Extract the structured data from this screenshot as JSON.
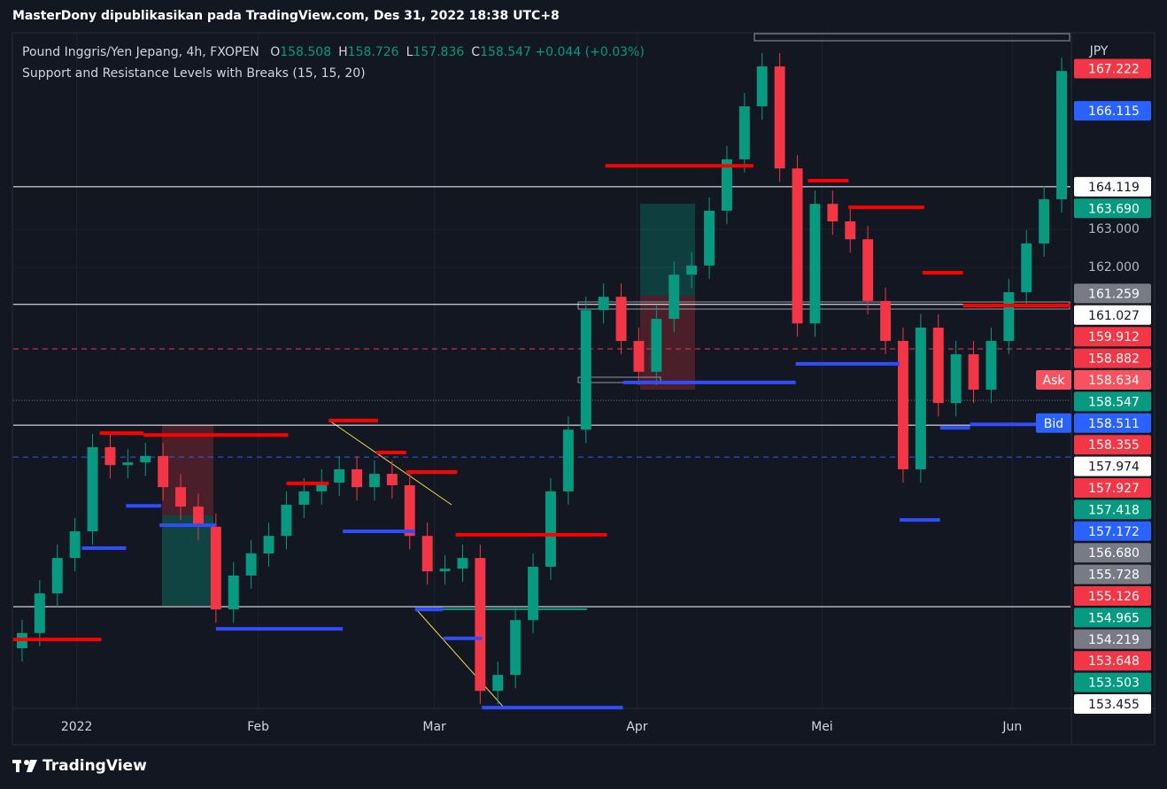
{
  "header": {
    "publisher": "MasterDony dipublikasikan pada TradingView.com, Des 31, 2022 18:38 UTC+8"
  },
  "footer": {
    "brand": "TradingView"
  },
  "chart_data": {
    "type": "candlestick",
    "title": "Pound Inggris/Yen Jepang, 4h, FXOPEN",
    "ohlc": [
      {
        "label": "O",
        "value": 158.508
      },
      {
        "label": "H",
        "value": 158.726
      },
      {
        "label": "L",
        "value": 157.836
      },
      {
        "label": "C",
        "value": 158.547
      }
    ],
    "change": "+0.044 (+0.03%)",
    "subtitle": "Support and Resistance Levels with Breaks (15, 15, 20)",
    "currency": "JPY",
    "up_color": "#089981",
    "down_color": "#f23645",
    "open": [
      152.0,
      152.4,
      153.44,
      154.37,
      155.07,
      157.28,
      156.81,
      156.88,
      157.05,
      156.23,
      155.72,
      155.19,
      153.02,
      153.91,
      154.49,
      154.95,
      155.77,
      156.12,
      156.35,
      156.7,
      156.23,
      156.58,
      156.28,
      154.95,
      154.02,
      154.09,
      154.37,
      150.88,
      151.3,
      152.74,
      154.14,
      156.12,
      157.74,
      160.88,
      161.23,
      160.07,
      159.26,
      160.65,
      161.81,
      162.05,
      163.49,
      164.84,
      166.23,
      167.28,
      164.6,
      160.53,
      163.67,
      163.21,
      162.74,
      161.12,
      160.07,
      156.7,
      160.42,
      158.44,
      159.72,
      158.79,
      160.07,
      161.35,
      162.63,
      163.79
    ],
    "high": [
      152.75,
      153.79,
      154.72,
      155.42,
      157.63,
      157.63,
      157.23,
      157.4,
      157.4,
      156.58,
      156.07,
      155.54,
      154.26,
      154.84,
      155.3,
      156.12,
      156.47,
      156.7,
      157.05,
      157.05,
      156.93,
      156.93,
      156.63,
      155.3,
      154.44,
      154.72,
      154.72,
      151.65,
      153.09,
      154.49,
      156.47,
      158.09,
      161.23,
      161.58,
      161.58,
      160.42,
      161.0,
      162.16,
      162.4,
      163.84,
      165.19,
      166.58,
      167.63,
      167.63,
      164.95,
      164.02,
      164.02,
      163.56,
      163.09,
      161.47,
      160.42,
      160.77,
      160.77,
      160.07,
      160.07,
      160.42,
      161.7,
      162.98,
      164.14,
      167.51
    ],
    "low": [
      151.65,
      152.05,
      153.09,
      154.02,
      154.72,
      156.46,
      156.46,
      156.53,
      155.88,
      155.37,
      154.84,
      152.67,
      152.67,
      153.56,
      154.14,
      154.6,
      155.42,
      155.77,
      156.0,
      155.88,
      155.88,
      155.93,
      154.6,
      153.67,
      153.67,
      153.74,
      150.53,
      150.53,
      150.95,
      152.39,
      153.79,
      155.77,
      157.39,
      160.53,
      159.72,
      158.91,
      158.91,
      160.3,
      161.46,
      161.7,
      163.14,
      164.49,
      165.88,
      164.25,
      160.18,
      160.18,
      162.86,
      162.39,
      160.77,
      159.72,
      156.35,
      156.35,
      158.09,
      158.09,
      158.44,
      158.44,
      159.72,
      161.0,
      162.28,
      163.44
    ],
    "close": [
      152.4,
      153.44,
      154.37,
      155.07,
      157.28,
      156.81,
      156.88,
      157.05,
      156.23,
      155.72,
      155.19,
      153.02,
      153.91,
      154.49,
      154.95,
      155.77,
      156.12,
      156.35,
      156.7,
      156.23,
      156.58,
      156.28,
      154.95,
      154.02,
      154.09,
      154.37,
      150.88,
      151.3,
      152.74,
      154.14,
      156.12,
      157.74,
      160.88,
      161.23,
      160.07,
      159.26,
      160.65,
      161.81,
      162.05,
      163.49,
      164.84,
      166.23,
      167.28,
      164.6,
      160.53,
      163.67,
      163.21,
      162.74,
      161.12,
      160.07,
      156.7,
      160.42,
      158.44,
      159.72,
      158.79,
      160.07,
      161.35,
      162.63,
      163.79,
      167.16
    ],
    "xlim": [
      0,
      60
    ],
    "xticks": [
      {
        "value": 3.6,
        "label": "2022"
      },
      {
        "value": 13.9,
        "label": "Feb"
      },
      {
        "value": 23.9,
        "label": "Mar"
      },
      {
        "value": 35.4,
        "label": "Apr"
      },
      {
        "value": 45.9,
        "label": "Mei"
      },
      {
        "value": 56.7,
        "label": "Jun"
      }
    ],
    "ylim": [
      150.42,
      168.14
    ],
    "yticks": [
      {
        "value": 163,
        "label": "163.000"
      },
      {
        "value": 162,
        "label": "162.000"
      }
    ],
    "levels": [
      {
        "value": 164.12,
        "color": "#ffffff",
        "style": "solid"
      },
      {
        "value": 161.03,
        "color": "#ffffff",
        "style": "solid"
      },
      {
        "value": 159.86,
        "color": "#f23645",
        "style": "dashed"
      },
      {
        "value": 158.51,
        "color": "#787b86",
        "style": "dotted"
      },
      {
        "value": 157.86,
        "color": "#ffffff",
        "style": "solid"
      },
      {
        "value": 157.02,
        "color": "#2962ff",
        "style": "dashed"
      },
      {
        "value": 153.09,
        "color": "#ffffff",
        "style": "solid"
      }
    ],
    "resistance": [
      {
        "from": 0,
        "to": 5.0,
        "value": 152.23
      },
      {
        "from": 4.9,
        "to": 7.4,
        "value": 157.65
      },
      {
        "from": 7.4,
        "to": 15.6,
        "value": 157.6
      },
      {
        "from": 15.5,
        "to": 17.9,
        "value": 156.33
      },
      {
        "from": 17.9,
        "to": 20.7,
        "value": 157.98
      },
      {
        "from": 20.6,
        "to": 22.3,
        "value": 157.14
      },
      {
        "from": 22.3,
        "to": 25.2,
        "value": 156.63
      },
      {
        "from": 25.1,
        "to": 33.7,
        "value": 154.98
      },
      {
        "from": 33.6,
        "to": 42.0,
        "value": 164.67
      },
      {
        "from": 45.1,
        "to": 47.4,
        "value": 164.28
      },
      {
        "from": 47.4,
        "to": 51.7,
        "value": 163.58
      },
      {
        "from": 51.6,
        "to": 53.9,
        "value": 161.86
      },
      {
        "from": 53.9,
        "to": 60,
        "value": 161.0
      }
    ],
    "support": [
      {
        "from": 3.9,
        "to": 6.4,
        "value": 154.63
      },
      {
        "from": 6.4,
        "to": 8.4,
        "value": 155.74
      },
      {
        "from": 8.3,
        "to": 11.5,
        "value": 155.23
      },
      {
        "from": 11.5,
        "to": 18.7,
        "value": 152.51
      },
      {
        "from": 18.7,
        "to": 22.8,
        "value": 155.07
      },
      {
        "from": 22.8,
        "to": 24.4,
        "value": 153.02
      },
      {
        "from": 24.4,
        "to": 26.6,
        "value": 152.26
      },
      {
        "from": 26.6,
        "to": 34.6,
        "value": 150.44
      },
      {
        "from": 34.6,
        "to": 44.4,
        "value": 158.98
      },
      {
        "from": 44.4,
        "to": 50.3,
        "value": 159.47
      },
      {
        "from": 50.3,
        "to": 52.6,
        "value": 155.37
      },
      {
        "from": 52.6,
        "to": 54.3,
        "value": 157.79
      },
      {
        "from": 54.3,
        "to": 58.1,
        "value": 157.88
      }
    ],
    "price_tags": [
      {
        "value": 167.222,
        "color": "#f23645",
        "text_color": "#ffffff"
      },
      {
        "value": 166.115,
        "color": "#2962ff",
        "text_color": "#ffffff"
      },
      {
        "value": 164.119,
        "color": "#ffffff",
        "text_color": "#131722"
      },
      {
        "value": 163.69,
        "label": "163.690",
        "color": "#089981",
        "text_color": "#ffffff"
      },
      {
        "value": 161.259,
        "color": "#787b86",
        "text_color": "#ffffff"
      },
      {
        "value": 161.027,
        "color": "#ffffff",
        "text_color": "#131722"
      },
      {
        "value": 159.912,
        "color": "#f23645",
        "text_color": "#ffffff"
      },
      {
        "value": 158.882,
        "color": "#f23645",
        "text_color": "#ffffff"
      },
      {
        "value": 158.634,
        "color": "#f7525f",
        "text_color": "#ffffff",
        "tag": "Ask"
      },
      {
        "value": 158.547,
        "color": "#089981",
        "text_color": "#ffffff"
      },
      {
        "value": 158.511,
        "color": "#2962ff",
        "text_color": "#ffffff",
        "tag": "Bid"
      },
      {
        "value": 158.355,
        "color": "#f23645",
        "text_color": "#ffffff"
      },
      {
        "value": 157.974,
        "color": "#ffffff",
        "text_color": "#131722"
      },
      {
        "value": 157.927,
        "color": "#f23645",
        "text_color": "#ffffff"
      },
      {
        "value": 157.418,
        "color": "#089981",
        "text_color": "#ffffff"
      },
      {
        "value": 157.172,
        "color": "#2962ff",
        "text_color": "#ffffff"
      },
      {
        "value": 156.68,
        "label": "156.680",
        "color": "#787b86",
        "text_color": "#ffffff"
      },
      {
        "value": 155.728,
        "color": "#787b86",
        "text_color": "#ffffff"
      },
      {
        "value": 155.126,
        "color": "#f23645",
        "text_color": "#ffffff"
      },
      {
        "value": 154.965,
        "color": "#089981",
        "text_color": "#ffffff"
      },
      {
        "value": 154.219,
        "color": "#787b86",
        "text_color": "#ffffff"
      },
      {
        "value": 153.648,
        "color": "#f23645",
        "text_color": "#ffffff"
      },
      {
        "value": 153.503,
        "color": "#089981",
        "text_color": "#ffffff"
      },
      {
        "value": 153.455,
        "color": "#ffffff",
        "text_color": "#131722"
      }
    ]
  }
}
